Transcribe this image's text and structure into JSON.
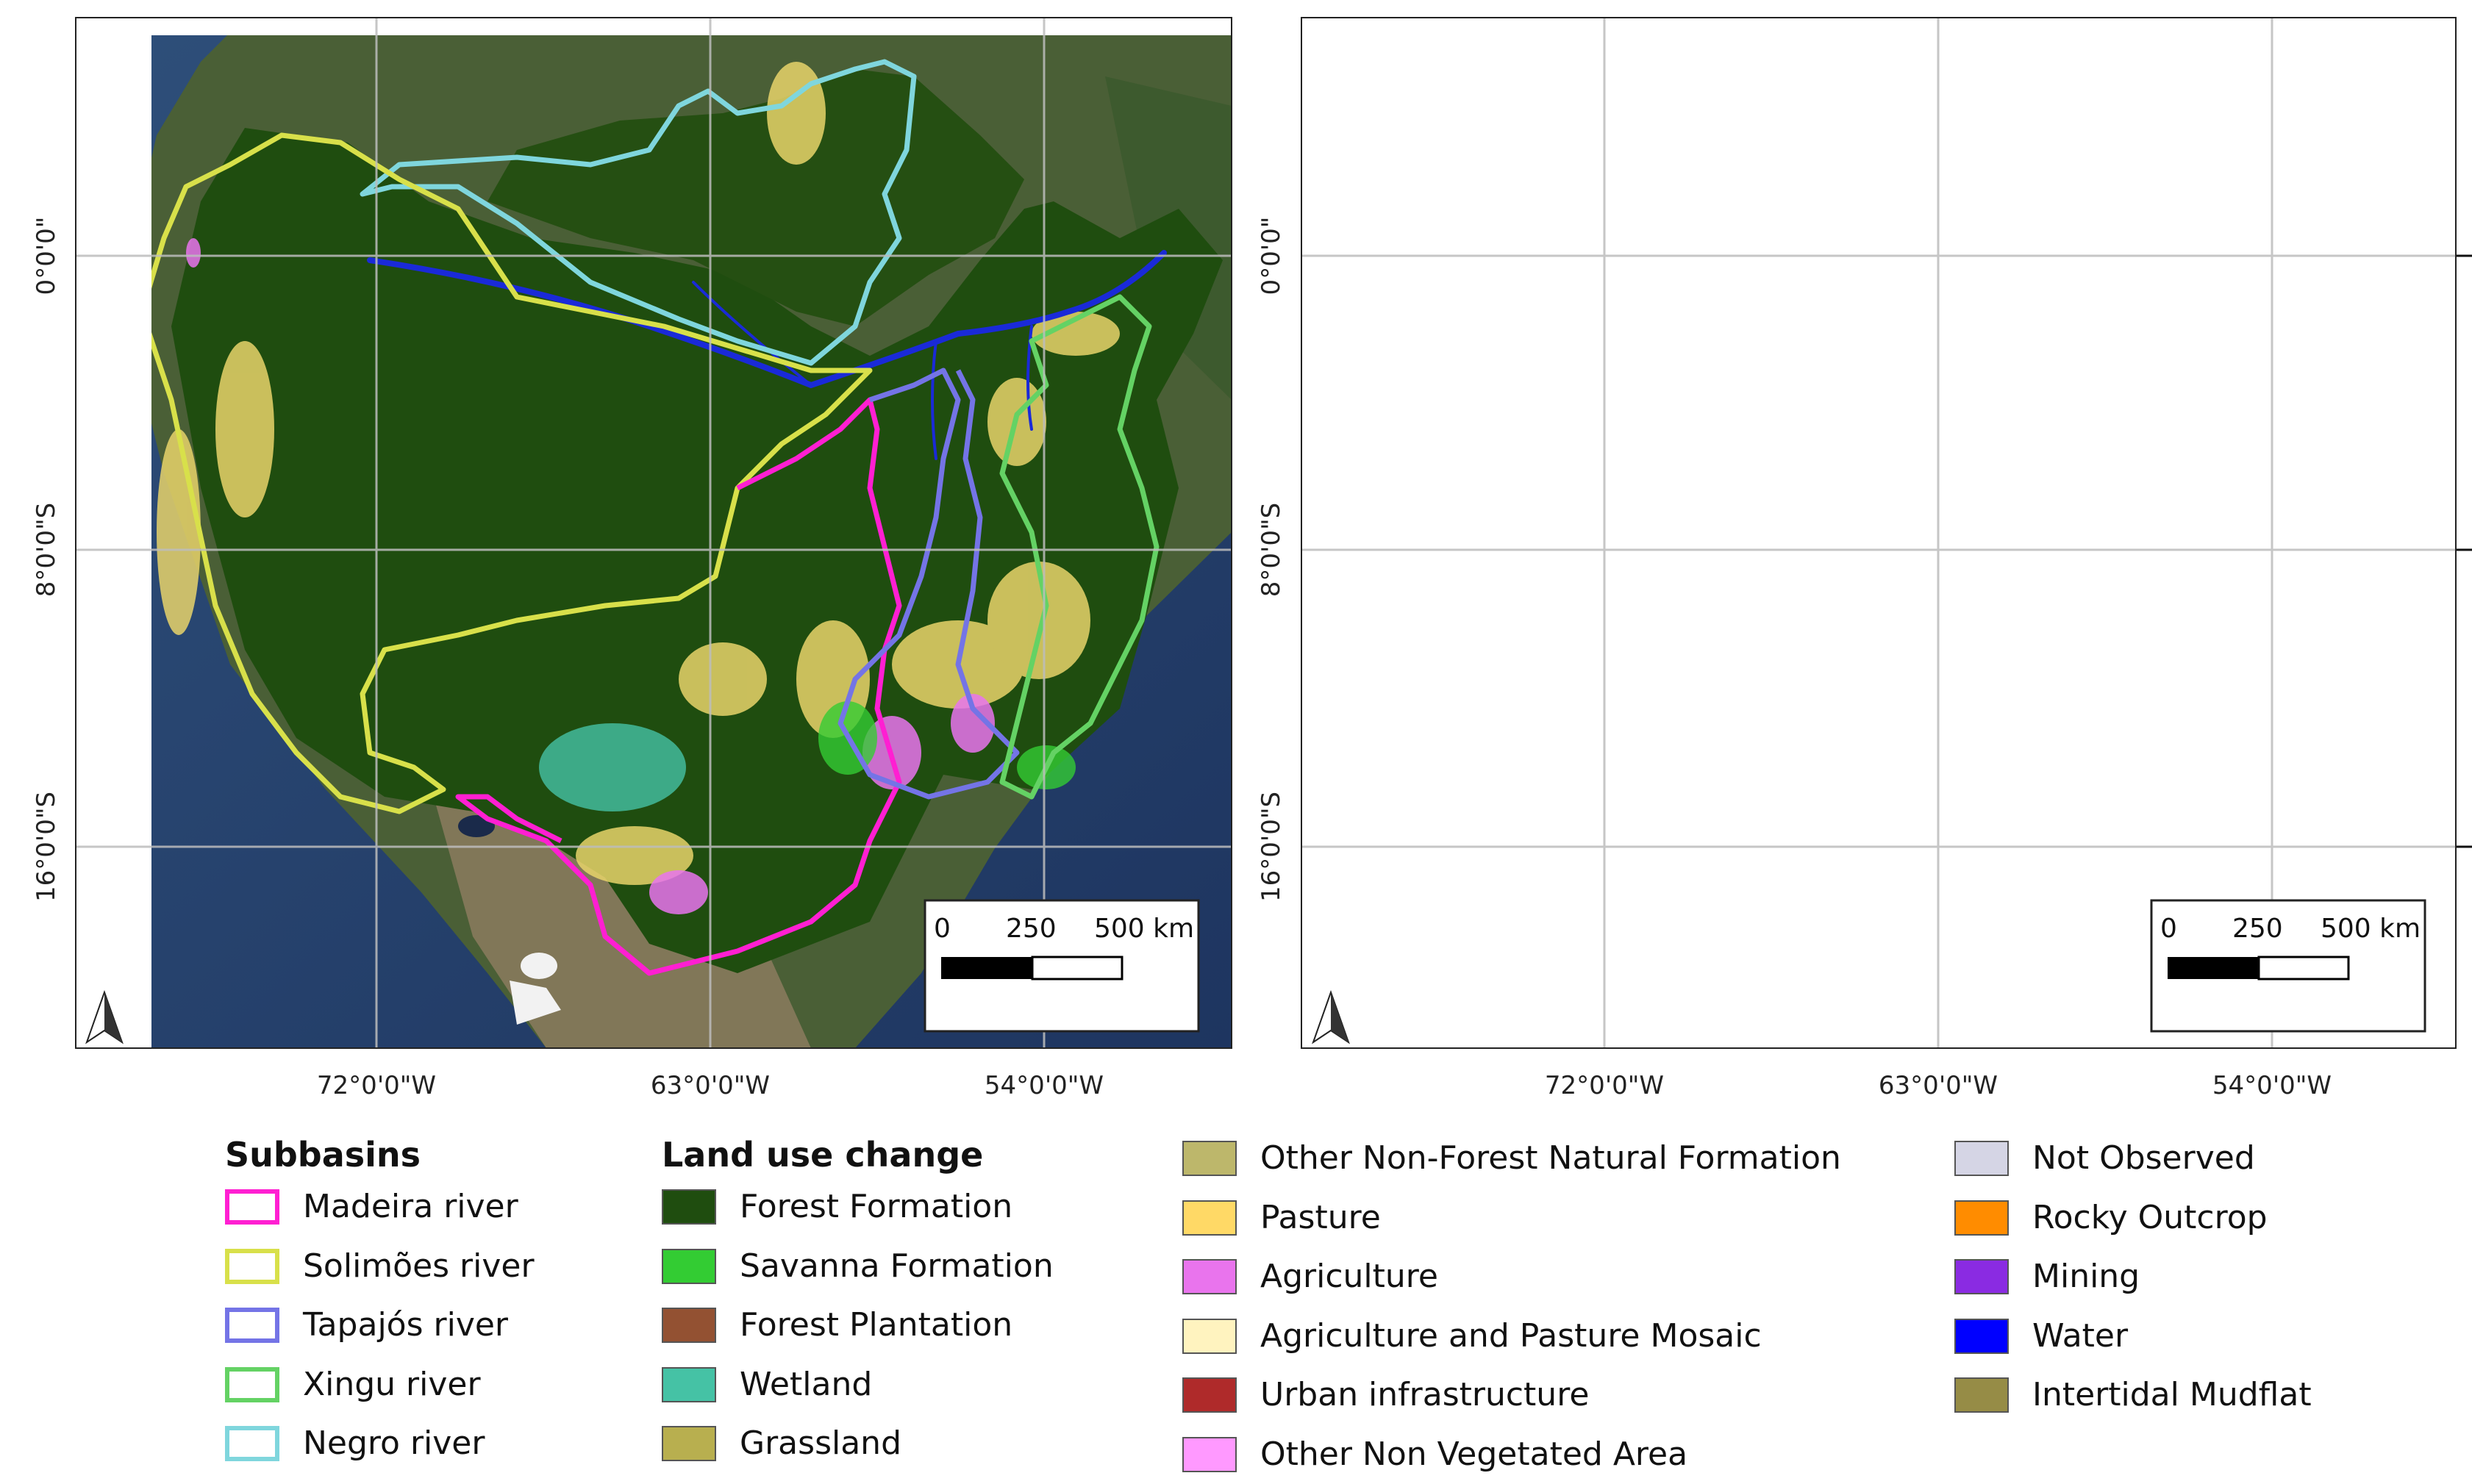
{
  "maps": [
    {
      "id": "map-left"
    },
    {
      "id": "map-right"
    }
  ],
  "graticule": {
    "lat_labels": [
      "0°0'0\"",
      "8°0'0\"S",
      "16°0'0\"S"
    ],
    "lon_labels": [
      "72°0'0\"W",
      "63°0'0\"W",
      "54°0'0\"W"
    ]
  },
  "scale_bar": {
    "ticks": [
      "0",
      "250",
      "500 km"
    ]
  },
  "north_arrow": "north-arrow-icon",
  "legend": {
    "subbasins": {
      "title": "Subbasins",
      "items": [
        {
          "label": "Madeira river",
          "color": "#ff1fd2"
        },
        {
          "label": "Solimões river",
          "color": "#d8e04a"
        },
        {
          "label": "Tapajós river",
          "color": "#7474e6"
        },
        {
          "label": "Xingu river",
          "color": "#64d264"
        },
        {
          "label": "Negro river",
          "color": "#7fd6dd"
        }
      ]
    },
    "land_use": {
      "title": "Land use change",
      "col1": [
        {
          "label": "Forest Formation",
          "color": "#1f4d0f"
        },
        {
          "label": "Savanna Formation",
          "color": "#33cc33"
        },
        {
          "label": "Forest Plantation",
          "color": "#935132"
        },
        {
          "label": "Wetland",
          "color": "#45c2a5"
        },
        {
          "label": "Grassland",
          "color": "#b8af4f"
        }
      ],
      "col2": [
        {
          "label": "Other Non-Forest Natural Formation",
          "color": "#bdb76b"
        },
        {
          "label": "Pasture",
          "color": "#ffd966"
        },
        {
          "label": "Agriculture",
          "color": "#e974ed"
        },
        {
          "label": "Agriculture and Pasture Mosaic",
          "color": "#fff3bf"
        },
        {
          "label": "Urban infrastructure",
          "color": "#af2a2a"
        },
        {
          "label": "Other Non Vegetated Area",
          "color": "#ff99ff"
        }
      ],
      "col3": [
        {
          "label": "Not Observed",
          "color": "#d5d5e5"
        },
        {
          "label": "Rocky Outcrop",
          "color": "#ff8c00"
        },
        {
          "label": "Mining",
          "color": "#8a2be2"
        },
        {
          "label": "Water",
          "color": "#0000ff"
        },
        {
          "label": "Intertidal Mudflat",
          "color": "#968c46"
        }
      ]
    }
  }
}
